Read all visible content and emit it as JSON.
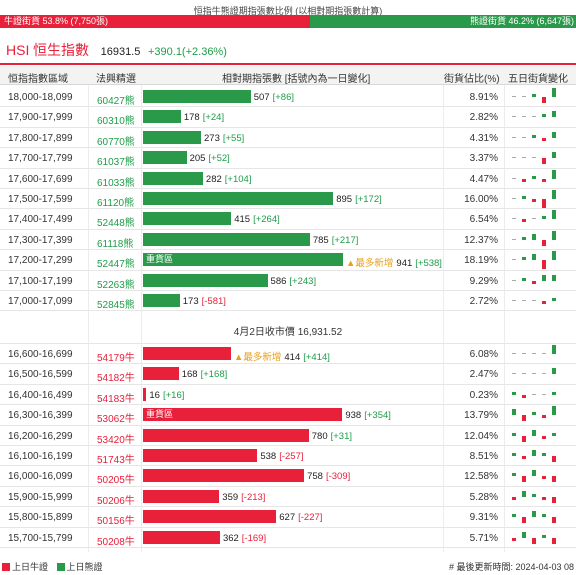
{
  "header": {
    "title": "恒指牛熊證期指張數比例 (以相對期指張數計算)",
    "bull_ratio_label": "牛證街貨 53.8% (7,750張)",
    "bear_ratio_label": "熊證街貨 46.2% (6,647張)",
    "bull_ratio_pct": 53.8
  },
  "index": {
    "code": "HSI",
    "name": "恒生指數",
    "value": "16931.5",
    "change": "+390.1(+2.36%)"
  },
  "table_headers": {
    "range": "恒指指數區域",
    "code": "法興精選",
    "bar": "相對期指張數 [括號內為一日變化]",
    "pct": "街貨佔比(%)",
    "spark": "五日街貨變化"
  },
  "max_contracts": 941,
  "bear_rows": [
    {
      "range": "18,000-18,099",
      "code": "60427熊",
      "value": "507",
      "change": "[+86]",
      "contracts": 507,
      "pct": "8.91%",
      "tag": "",
      "spark": [
        0,
        0,
        1,
        -2,
        3
      ]
    },
    {
      "range": "17,900-17,999",
      "code": "60310熊",
      "value": "178",
      "change": "[+24]",
      "contracts": 178,
      "pct": "2.82%",
      "tag": "",
      "spark": [
        0,
        0,
        0,
        1,
        2
      ]
    },
    {
      "range": "17,800-17,899",
      "code": "60770熊",
      "value": "273",
      "change": "[+55]",
      "contracts": 273,
      "pct": "4.31%",
      "tag": "",
      "spark": [
        0,
        0,
        1,
        -1,
        2
      ]
    },
    {
      "range": "17,700-17,799",
      "code": "61037熊",
      "value": "205",
      "change": "[+52]",
      "contracts": 205,
      "pct": "3.37%",
      "tag": "",
      "spark": [
        0,
        0,
        0,
        -2,
        2
      ]
    },
    {
      "range": "17,600-17,699",
      "code": "61033熊",
      "value": "282",
      "change": "[+104]",
      "contracts": 282,
      "pct": "4.47%",
      "tag": "",
      "spark": [
        0,
        -1,
        1,
        -1,
        3
      ]
    },
    {
      "range": "17,500-17,599",
      "code": "61120熊",
      "value": "895",
      "change": "[+172]",
      "contracts": 895,
      "pct": "16.00%",
      "tag": "",
      "spark": [
        0,
        1,
        -1,
        -3,
        3
      ]
    },
    {
      "range": "17,400-17,499",
      "code": "52448熊",
      "value": "415",
      "change": "[+264]",
      "contracts": 415,
      "pct": "6.54%",
      "tag": "",
      "spark": [
        0,
        -1,
        0,
        1,
        3
      ]
    },
    {
      "range": "17,300-17,399",
      "code": "61118熊",
      "value": "785",
      "change": "[+217]",
      "contracts": 785,
      "pct": "12.37%",
      "tag": "",
      "spark": [
        0,
        1,
        2,
        -2,
        3
      ]
    },
    {
      "range": "17,200-17,299",
      "code": "52447熊",
      "value": "941",
      "change": "[+538]",
      "contracts": 941,
      "pct": "18.19%",
      "tag": "重貨區",
      "note": "▲最多新增",
      "spark": [
        0,
        1,
        2,
        -3,
        3
      ]
    },
    {
      "range": "17,100-17,199",
      "code": "52263熊",
      "value": "586",
      "change": "[+243]",
      "contracts": 586,
      "pct": "9.29%",
      "tag": "",
      "spark": [
        0,
        1,
        -1,
        2,
        2
      ]
    },
    {
      "range": "17,000-17,099",
      "code": "52845熊",
      "value": "173",
      "change": "[-581]",
      "contracts": 173,
      "pct": "2.72%",
      "tag": "",
      "spark": [
        0,
        0,
        0,
        -1,
        1
      ]
    }
  ],
  "mid_label": "4月2日收市價 16,931.52",
  "bull_rows": [
    {
      "range": "16,600-16,699",
      "code": "54179牛",
      "value": "414",
      "change": "[+414]",
      "contracts": 414,
      "pct": "6.08%",
      "tag": "",
      "note": "▲最多新增",
      "spark": [
        0,
        0,
        0,
        0,
        3
      ]
    },
    {
      "range": "16,500-16,599",
      "code": "54182牛",
      "value": "168",
      "change": "[+168]",
      "contracts": 168,
      "pct": "2.47%",
      "tag": "",
      "spark": [
        0,
        0,
        0,
        0,
        2
      ]
    },
    {
      "range": "16,400-16,499",
      "code": "54183牛",
      "value": "16",
      "change": "[+16]",
      "contracts": 16,
      "pct": "0.23%",
      "tag": "",
      "spark": [
        1,
        -1,
        0,
        0,
        1
      ]
    },
    {
      "range": "16,300-16,399",
      "code": "53062牛",
      "value": "938",
      "change": "[+354]",
      "contracts": 938,
      "pct": "13.79%",
      "tag": "重貨區",
      "spark": [
        2,
        -2,
        1,
        -1,
        3
      ]
    },
    {
      "range": "16,200-16,299",
      "code": "53420牛",
      "value": "780",
      "change": "[+31]",
      "contracts": 780,
      "pct": "12.04%",
      "tag": "",
      "spark": [
        1,
        -2,
        2,
        -1,
        1
      ]
    },
    {
      "range": "16,100-16,199",
      "code": "51743牛",
      "value": "538",
      "change": "[-257]",
      "contracts": 538,
      "pct": "8.51%",
      "tag": "",
      "spark": [
        1,
        -1,
        2,
        1,
        -2
      ]
    },
    {
      "range": "16,000-16,099",
      "code": "50205牛",
      "value": "758",
      "change": "[-309]",
      "contracts": 758,
      "pct": "12.58%",
      "tag": "",
      "spark": [
        1,
        -2,
        2,
        -1,
        -2
      ]
    },
    {
      "range": "15,900-15,999",
      "code": "50206牛",
      "value": "359",
      "change": "[-213]",
      "contracts": 359,
      "pct": "5.28%",
      "tag": "",
      "spark": [
        -1,
        2,
        1,
        -1,
        -2
      ]
    },
    {
      "range": "15,800-15,899",
      "code": "50156牛",
      "value": "627",
      "change": "[-227]",
      "contracts": 627,
      "pct": "9.31%",
      "tag": "",
      "spark": [
        1,
        -2,
        2,
        1,
        -2
      ]
    },
    {
      "range": "15,700-15,799",
      "code": "50208牛",
      "value": "362",
      "change": "[-169]",
      "contracts": 362,
      "pct": "5.71%",
      "tag": "",
      "spark": [
        -1,
        2,
        -2,
        1,
        -2
      ]
    }
  ],
  "footer": {
    "legend_bull": "上日牛證",
    "legend_bear": "上日熊證",
    "updated": "# 最後更新時間: 2024-04-03 08"
  },
  "colors": {
    "bull": "#e8203a",
    "bear": "#2a9a4a",
    "accent_up": "#1f9d48",
    "accent_down": "#e8203a"
  }
}
